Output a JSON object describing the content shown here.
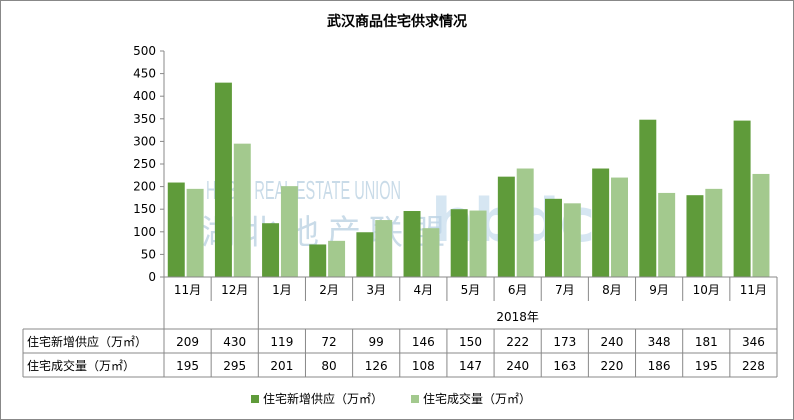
{
  "chart_data": {
    "type": "bar",
    "title": "武汉商品住宅供求情况",
    "categories": [
      "11月",
      "12月",
      "1月",
      "2月",
      "3月",
      "4月",
      "5月",
      "6月",
      "7月",
      "8月",
      "9月",
      "10月",
      "11月"
    ],
    "year_label": "2018年",
    "series": [
      {
        "name": "住宅新增供应（万㎡）",
        "color": "#5f9b3a",
        "values": [
          209,
          430,
          119,
          72,
          99,
          146,
          150,
          222,
          173,
          240,
          348,
          181,
          346
        ]
      },
      {
        "name": "住宅成交量（万㎡）",
        "color": "#a3c98e",
        "values": [
          195,
          295,
          201,
          80,
          126,
          108,
          147,
          240,
          163,
          220,
          186,
          195,
          228
        ]
      }
    ],
    "table_values_sale": [
      195,
      295,
      201,
      80,
      126,
      108,
      147,
      240,
      163,
      220,
      186,
      195,
      228
    ],
    "yticks": [
      0,
      50,
      100,
      150,
      200,
      250,
      300,
      350,
      400,
      450,
      500
    ],
    "ylim": [
      0,
      500
    ],
    "grid": false,
    "legend": "bottom",
    "data_table": true,
    "watermark": {
      "en": "HUBEI REAL ESTATE UNION",
      "cn": "湖北地产联盟",
      "logo": "hbdc"
    }
  }
}
